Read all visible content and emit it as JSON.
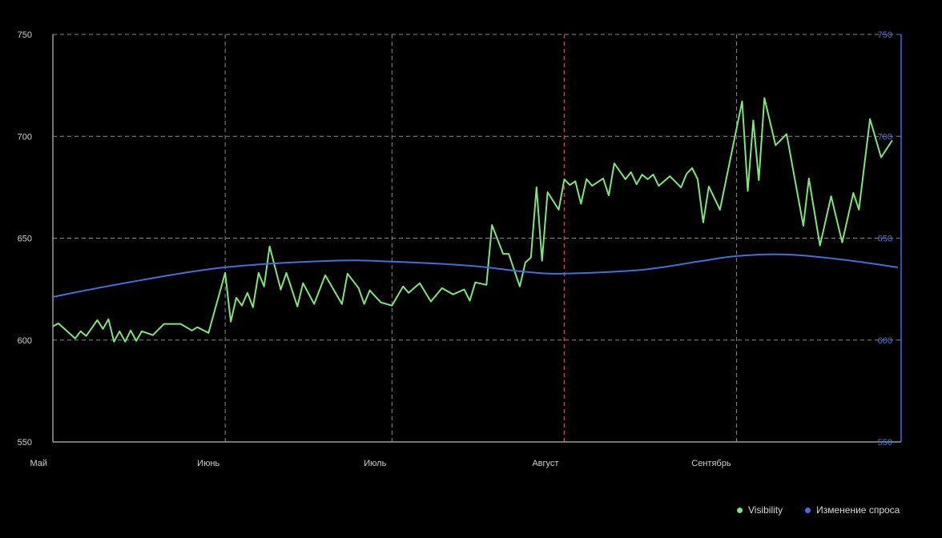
{
  "chart_data": {
    "type": "line",
    "title": "",
    "xlabel": "",
    "ylabel": "",
    "x_tick_labels": [
      {
        "date": "05-01",
        "label": "Май"
      },
      {
        "date": "06-01",
        "label": "Июнь"
      },
      {
        "date": "07-01",
        "label": "Июль"
      },
      {
        "date": "08-01",
        "label": "Август"
      },
      {
        "date": "09-01",
        "label": "Сентябрь"
      }
    ],
    "xlim": [
      "05-01",
      "09-30"
    ],
    "ylim": [
      550,
      750
    ],
    "y_ticks": [
      "550",
      "600",
      "650",
      "700",
      "750"
    ],
    "y2lim": [
      550,
      750
    ],
    "y2_ticks": [
      "550",
      "600",
      "650",
      "700",
      "750"
    ],
    "grid": true,
    "marker_line": {
      "date": "08-01",
      "color": "#e53935"
    },
    "legend_position": "bottom-right",
    "series": [
      {
        "name": "Visibility",
        "color": "#7ee67a",
        "axis": "left",
        "points": [
          [
            "05-01",
            606.7
          ],
          [
            "05-02",
            608.2
          ],
          [
            "05-05",
            600.8
          ],
          [
            "05-06",
            604.3
          ],
          [
            "05-07",
            602.0
          ],
          [
            "05-09",
            609.8
          ],
          [
            "05-10",
            605.5
          ],
          [
            "05-11",
            610.2
          ],
          [
            "05-12",
            599.2
          ],
          [
            "05-13",
            604.3
          ],
          [
            "05-14",
            599.2
          ],
          [
            "05-15",
            604.7
          ],
          [
            "05-16",
            599.6
          ],
          [
            "05-17",
            604.3
          ],
          [
            "05-19",
            602.4
          ],
          [
            "05-21",
            607.9
          ],
          [
            "05-24",
            607.9
          ],
          [
            "05-26",
            604.7
          ],
          [
            "05-27",
            606.3
          ],
          [
            "05-29",
            603.5
          ],
          [
            "06-01",
            633.0
          ],
          [
            "06-02",
            609.0
          ],
          [
            "06-03",
            620.8
          ],
          [
            "06-04",
            616.9
          ],
          [
            "06-05",
            623.2
          ],
          [
            "06-06",
            616.1
          ],
          [
            "06-07",
            633.0
          ],
          [
            "06-08",
            626.3
          ],
          [
            "06-09",
            646.0
          ],
          [
            "06-11",
            624.8
          ],
          [
            "06-12",
            633.0
          ],
          [
            "06-14",
            616.5
          ],
          [
            "06-15",
            627.9
          ],
          [
            "06-17",
            617.7
          ],
          [
            "06-19",
            631.8
          ],
          [
            "06-22",
            617.7
          ],
          [
            "06-23",
            632.6
          ],
          [
            "06-25",
            625.5
          ],
          [
            "06-26",
            617.7
          ],
          [
            "06-27",
            624.4
          ],
          [
            "06-29",
            618.5
          ],
          [
            "07-01",
            616.9
          ],
          [
            "07-03",
            626.3
          ],
          [
            "07-04",
            623.2
          ],
          [
            "07-06",
            627.9
          ],
          [
            "07-08",
            618.9
          ],
          [
            "07-10",
            625.5
          ],
          [
            "07-12",
            622.4
          ],
          [
            "07-14",
            624.8
          ],
          [
            "07-15",
            619.3
          ],
          [
            "07-16",
            628.3
          ],
          [
            "07-18",
            627.1
          ],
          [
            "07-19",
            656.5
          ],
          [
            "07-21",
            642.3
          ],
          [
            "07-22",
            642.3
          ],
          [
            "07-24",
            626.3
          ],
          [
            "07-25",
            638.1
          ],
          [
            "07-26",
            640.5
          ],
          [
            "07-27",
            675.0
          ],
          [
            "07-28",
            638.9
          ],
          [
            "07-29",
            672.6
          ],
          [
            "07-31",
            664.0
          ],
          [
            "08-01",
            678.9
          ],
          [
            "08-02",
            676.1
          ],
          [
            "08-03",
            677.9
          ],
          [
            "08-04",
            666.9
          ],
          [
            "08-05",
            679.0
          ],
          [
            "08-06",
            675.7
          ],
          [
            "08-08",
            679.3
          ],
          [
            "08-09",
            671.0
          ],
          [
            "08-10",
            686.7
          ],
          [
            "08-12",
            678.9
          ],
          [
            "08-13",
            682.4
          ],
          [
            "08-14",
            676.5
          ],
          [
            "08-15",
            681.2
          ],
          [
            "08-16",
            678.9
          ],
          [
            "08-17",
            681.2
          ],
          [
            "08-18",
            675.7
          ],
          [
            "08-20",
            680.4
          ],
          [
            "08-22",
            674.9
          ],
          [
            "08-23",
            681.6
          ],
          [
            "08-24",
            684.4
          ],
          [
            "08-25",
            678.9
          ],
          [
            "08-26",
            657.7
          ],
          [
            "08-27",
            675.4
          ],
          [
            "08-29",
            664.0
          ],
          [
            "09-02",
            717.2
          ],
          [
            "09-03",
            673.2
          ],
          [
            "09-04",
            707.8
          ],
          [
            "09-05",
            678.5
          ],
          [
            "09-06",
            718.8
          ],
          [
            "09-08",
            695.6
          ],
          [
            "09-10",
            701.1
          ],
          [
            "09-13",
            656.1
          ],
          [
            "09-14",
            679.3
          ],
          [
            "09-16",
            646.4
          ],
          [
            "09-18",
            670.6
          ],
          [
            "09-20",
            647.9
          ],
          [
            "09-22",
            672.2
          ],
          [
            "09-23",
            664.0
          ],
          [
            "09-25",
            708.5
          ],
          [
            "09-27",
            689.7
          ],
          [
            "09-29",
            698.0
          ]
        ]
      },
      {
        "name": "Изменение спроса",
        "color": "#3f6fe0",
        "axis": "right",
        "points": [
          [
            "05-01",
            621.2
          ],
          [
            "05-15",
            628.5
          ],
          [
            "06-01",
            635.7
          ],
          [
            "06-20",
            638.9
          ],
          [
            "07-01",
            638.5
          ],
          [
            "07-15",
            636.5
          ],
          [
            "07-25",
            633.5
          ],
          [
            "08-01",
            632.6
          ],
          [
            "08-15",
            634.5
          ],
          [
            "08-25",
            638.5
          ],
          [
            "09-01",
            641.2
          ],
          [
            "09-10",
            642.0
          ],
          [
            "09-20",
            639.5
          ],
          [
            "09-30",
            635.7
          ]
        ]
      }
    ]
  },
  "legend": {
    "items": [
      {
        "label": "Visibility",
        "color": "#7ee67a"
      },
      {
        "label": "Изменение спроса",
        "color": "#3f6fe0"
      }
    ]
  }
}
